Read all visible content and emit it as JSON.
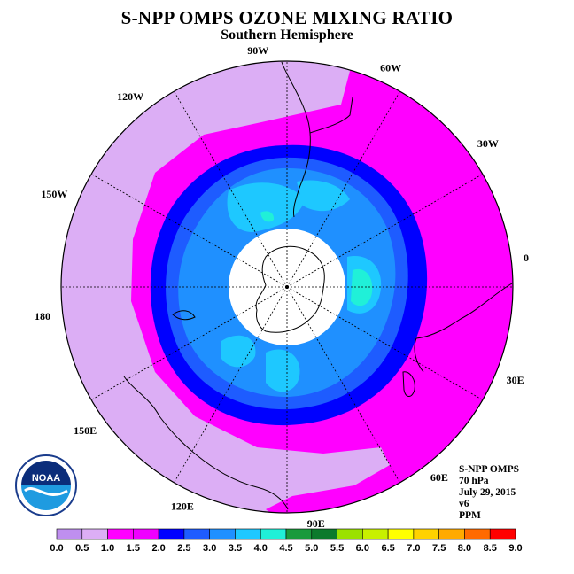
{
  "title": "S-NPP OMPS OZONE MIXING RATIO",
  "subtitle": "Southern Hemisphere",
  "longitude_labels": [
    "90W",
    "60W",
    "30W",
    "0",
    "30E",
    "60E",
    "90E",
    "120E",
    "150E",
    "180",
    "150W",
    "120W"
  ],
  "info": {
    "instrument": "S-NPP OMPS",
    "pressure": "70 hPa",
    "date": "July 29, 2015",
    "version": "v6",
    "units": "PPM"
  },
  "logo_text": "NOAA",
  "colorbar": {
    "tick_labels": [
      "0.0",
      "0.5",
      "1.0",
      "1.5",
      "2.0",
      "2.5",
      "3.0",
      "3.5",
      "4.0",
      "4.5",
      "5.0",
      "5.5",
      "6.0",
      "6.5",
      "7.0",
      "7.5",
      "8.0",
      "8.5",
      "9.0"
    ],
    "colors": [
      "#bf8fef",
      "#dcaef5",
      "#ff00ff",
      "#ef00ff",
      "#0000ff",
      "#1e5cff",
      "#1f90ff",
      "#1ec8ff",
      "#20f0d8",
      "#1a9a3c",
      "#0b7a2c",
      "#9be100",
      "#c8f000",
      "#ffff00",
      "#ffd200",
      "#ffaa00",
      "#ff6a00",
      "#ff0000",
      "#8b5a3c"
    ]
  },
  "chart_data": {
    "type": "heatmap",
    "projection": "south-polar-stereographic",
    "quantity": "ozone mixing ratio",
    "units": "PPM",
    "value_range": [
      0.0,
      9.0
    ],
    "contour_interval": 0.5,
    "levels": [
      {
        "range": [
          0.5,
          1.0
        ],
        "region": "outer mid-latitudes, Pacific and Indian Ocean sector"
      },
      {
        "range": [
          1.0,
          1.5
        ],
        "region": "broad ring around polar vortex, widest over South Atlantic"
      },
      {
        "range": [
          1.5,
          2.0
        ],
        "region": "thin ring at vortex edge"
      },
      {
        "range": [
          2.0,
          2.5
        ],
        "region": "vortex collar"
      },
      {
        "range": [
          2.5,
          3.0
        ],
        "region": "inner vortex"
      },
      {
        "range": [
          3.0,
          3.5
        ],
        "region": "inner vortex maxima"
      },
      {
        "range": [
          3.5,
          4.0
        ],
        "region": "small pockets near 0-30E and 60W-90W"
      }
    ],
    "no_data_region": "polar cap around the South Pole"
  }
}
